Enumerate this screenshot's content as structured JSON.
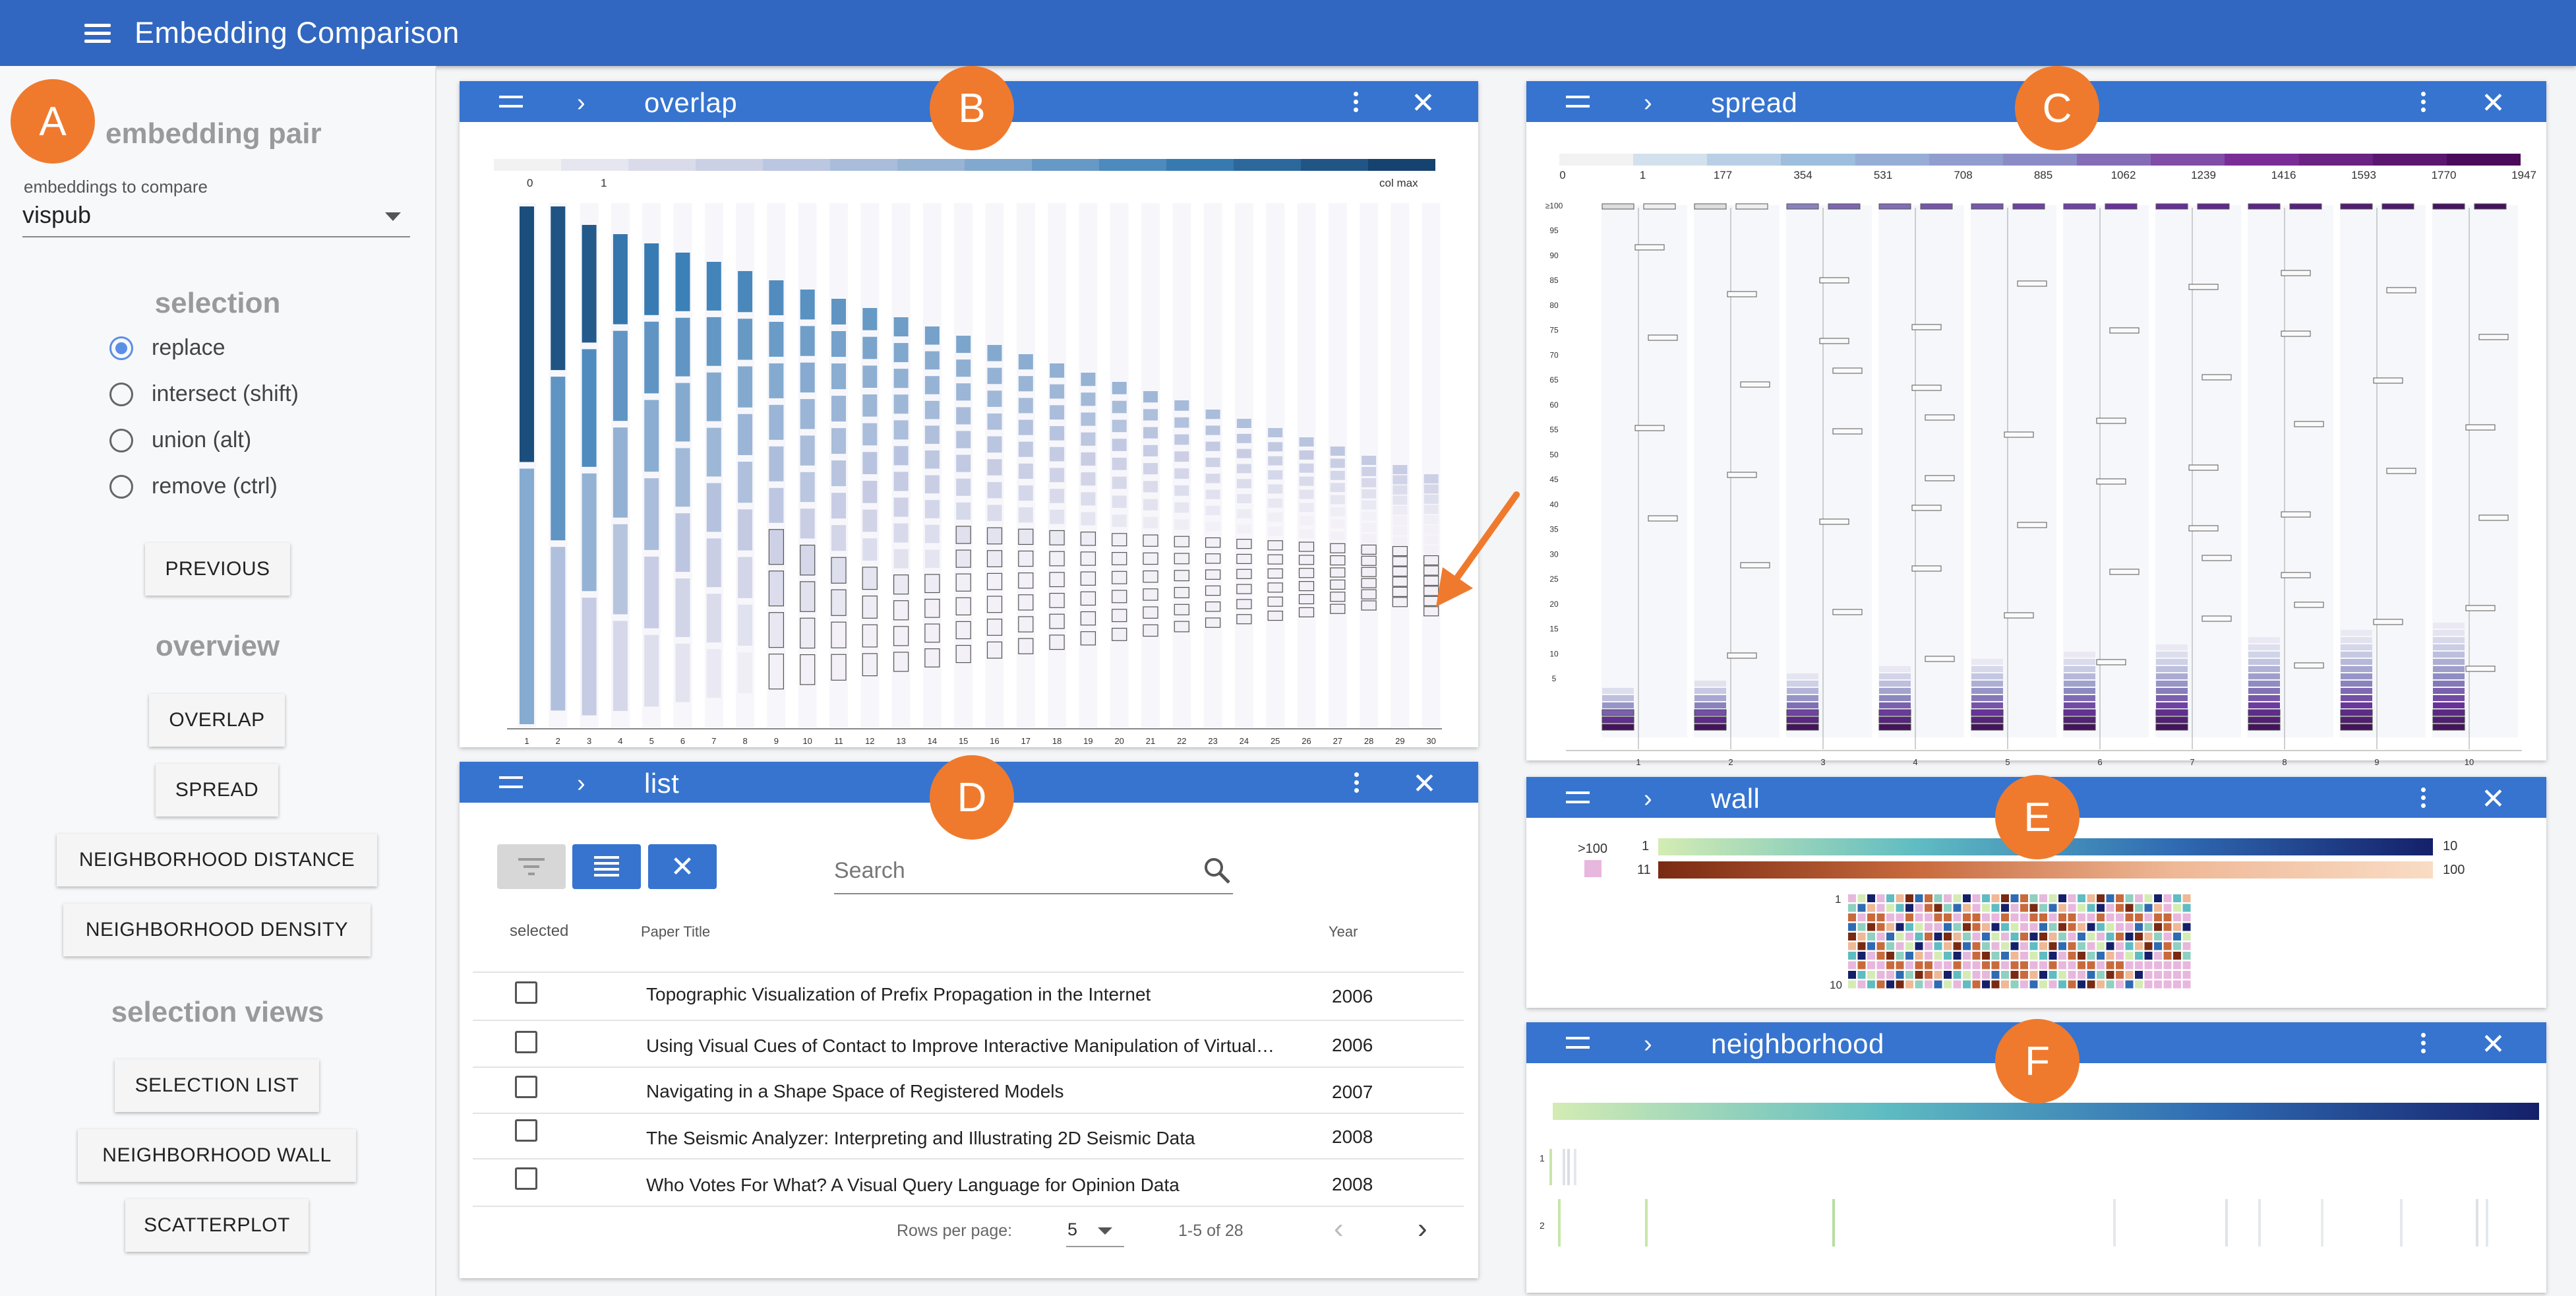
{
  "app": {
    "title": "Embedding Comparison"
  },
  "badges": {
    "a": "A",
    "b": "B",
    "c": "C",
    "d": "D",
    "e": "E",
    "f": "F"
  },
  "sidebar": {
    "embedding_pair_heading": "embedding pair",
    "select_label": "embeddings to compare",
    "select_value": "vispub",
    "selection_heading": "selection",
    "radios": [
      {
        "label": "replace",
        "checked": true
      },
      {
        "label": "intersect (shift)",
        "checked": false
      },
      {
        "label": "union (alt)",
        "checked": false
      },
      {
        "label": "remove (ctrl)",
        "checked": false
      }
    ],
    "previous_button": "PREVIOUS",
    "overview_heading": "overview",
    "overview_buttons": [
      "OVERLAP",
      "SPREAD",
      "NEIGHBORHOOD DISTANCE",
      "NEIGHBORHOOD DENSITY"
    ],
    "selection_views_heading": "selection views",
    "selection_view_buttons": [
      "SELECTION LIST",
      "NEIGHBORHOOD WALL",
      "SCATTERPLOT"
    ]
  },
  "panels": {
    "overlap": {
      "title": "overlap",
      "legend_first_labels": [
        "0",
        "1"
      ],
      "legend_end_label": "col max",
      "x_ticks": [
        "1",
        "2",
        "3",
        "4",
        "5",
        "6",
        "7",
        "8",
        "9",
        "10",
        "11",
        "12",
        "13",
        "14",
        "15",
        "16",
        "17",
        "18",
        "19",
        "20",
        "21",
        "22",
        "23",
        "24",
        "25",
        "26",
        "27",
        "28",
        "29",
        "30"
      ]
    },
    "spread": {
      "title": "spread",
      "legend_labels": [
        "0",
        "1",
        "177",
        "354",
        "531",
        "708",
        "885",
        "1062",
        "1239",
        "1416",
        "1593",
        "1770",
        "1947"
      ],
      "y_ticks": [
        "≥100",
        "95",
        "90",
        "85",
        "80",
        "75",
        "70",
        "65",
        "60",
        "55",
        "50",
        "45",
        "40",
        "35",
        "30",
        "25",
        "20",
        "15",
        "10",
        "5"
      ],
      "x_ticks": [
        "1",
        "2",
        "3",
        "4",
        "5",
        "6",
        "7",
        "8",
        "9",
        "10"
      ]
    },
    "list": {
      "title": "list",
      "search_placeholder": "Search",
      "columns": [
        "selected",
        "Paper Title",
        "Year"
      ],
      "rows": [
        {
          "title": "Topographic Visualization of Prefix Propagation in the Internet",
          "year": "2006"
        },
        {
          "title": "Using Visual Cues of Contact to Improve Interactive Manipulation of Virtual…",
          "year": "2006"
        },
        {
          "title": "Navigating in a Shape Space of Registered Models",
          "year": "2007"
        },
        {
          "title": "The Seismic Analyzer: Interpreting and Illustrating 2D Seismic Data",
          "year": "2008"
        },
        {
          "title": "Who Votes For What? A Visual Query Language for Opinion Data",
          "year": "2008"
        }
      ],
      "rows_per_page_label": "Rows per page:",
      "rows_per_page_value": "5",
      "range_text": "1-5 of 28"
    },
    "wall": {
      "title": "wall",
      "legend_gt100": ">100",
      "scale1_min": "1",
      "scale1_max": "10",
      "scale2_min": "11",
      "scale2_max": "100",
      "row_label_top": "1",
      "row_label_bottom": "10"
    },
    "neighborhood": {
      "title": "neighborhood",
      "row_labels": [
        "1",
        "2"
      ]
    }
  },
  "colors": {
    "appbar": "#3167c0",
    "panel_header": "#3674cf",
    "badge": "#ef7a2d",
    "arrow": "#ef7a2d",
    "accent": "#5b8ee6"
  }
}
